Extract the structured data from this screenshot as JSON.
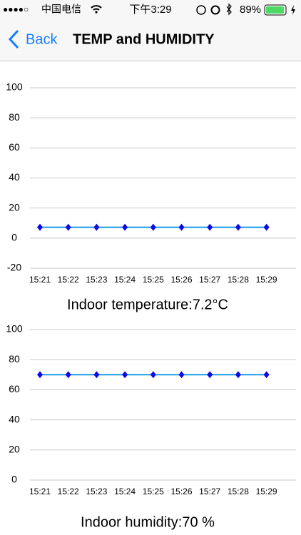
{
  "status_bar": {
    "signal": "●●●●○",
    "carrier": "中国电信",
    "time": "下午3:29",
    "battery": "89%"
  },
  "nav_bar": {
    "back": "Back",
    "title": "TEMP and HUMIDITY"
  },
  "chart_data": [
    {
      "type": "line",
      "caption": "Indoor temperature:7.2°C",
      "categories": [
        "15:21",
        "15:22",
        "15:23",
        "15:24",
        "15:25",
        "15:26",
        "15:27",
        "15:28",
        "15:29"
      ],
      "series": [
        {
          "color": "#1a9be6",
          "marker_color": "#0a0ae6",
          "values": [
            7.2,
            7.2,
            7.2,
            7.2,
            7.2,
            7.2,
            7.2,
            7.2,
            7.2
          ]
        }
      ],
      "ylim": [
        -20,
        100
      ],
      "yticks": [
        -20,
        0,
        20,
        40,
        60,
        80,
        100
      ],
      "grid": true
    },
    {
      "type": "line",
      "caption": "Indoor humidity:70 %",
      "categories": [
        "15:21",
        "15:22",
        "15:23",
        "15:24",
        "15:25",
        "15:26",
        "15:27",
        "15:28",
        "15:29"
      ],
      "series": [
        {
          "color": "#1a9be6",
          "marker_color": "#0a0ae6",
          "values": [
            70,
            70,
            70,
            70,
            70,
            70,
            70,
            70,
            70
          ]
        }
      ],
      "ylim": [
        0,
        100
      ],
      "yticks": [
        0,
        20,
        40,
        60,
        80,
        100
      ],
      "grid": true
    }
  ]
}
